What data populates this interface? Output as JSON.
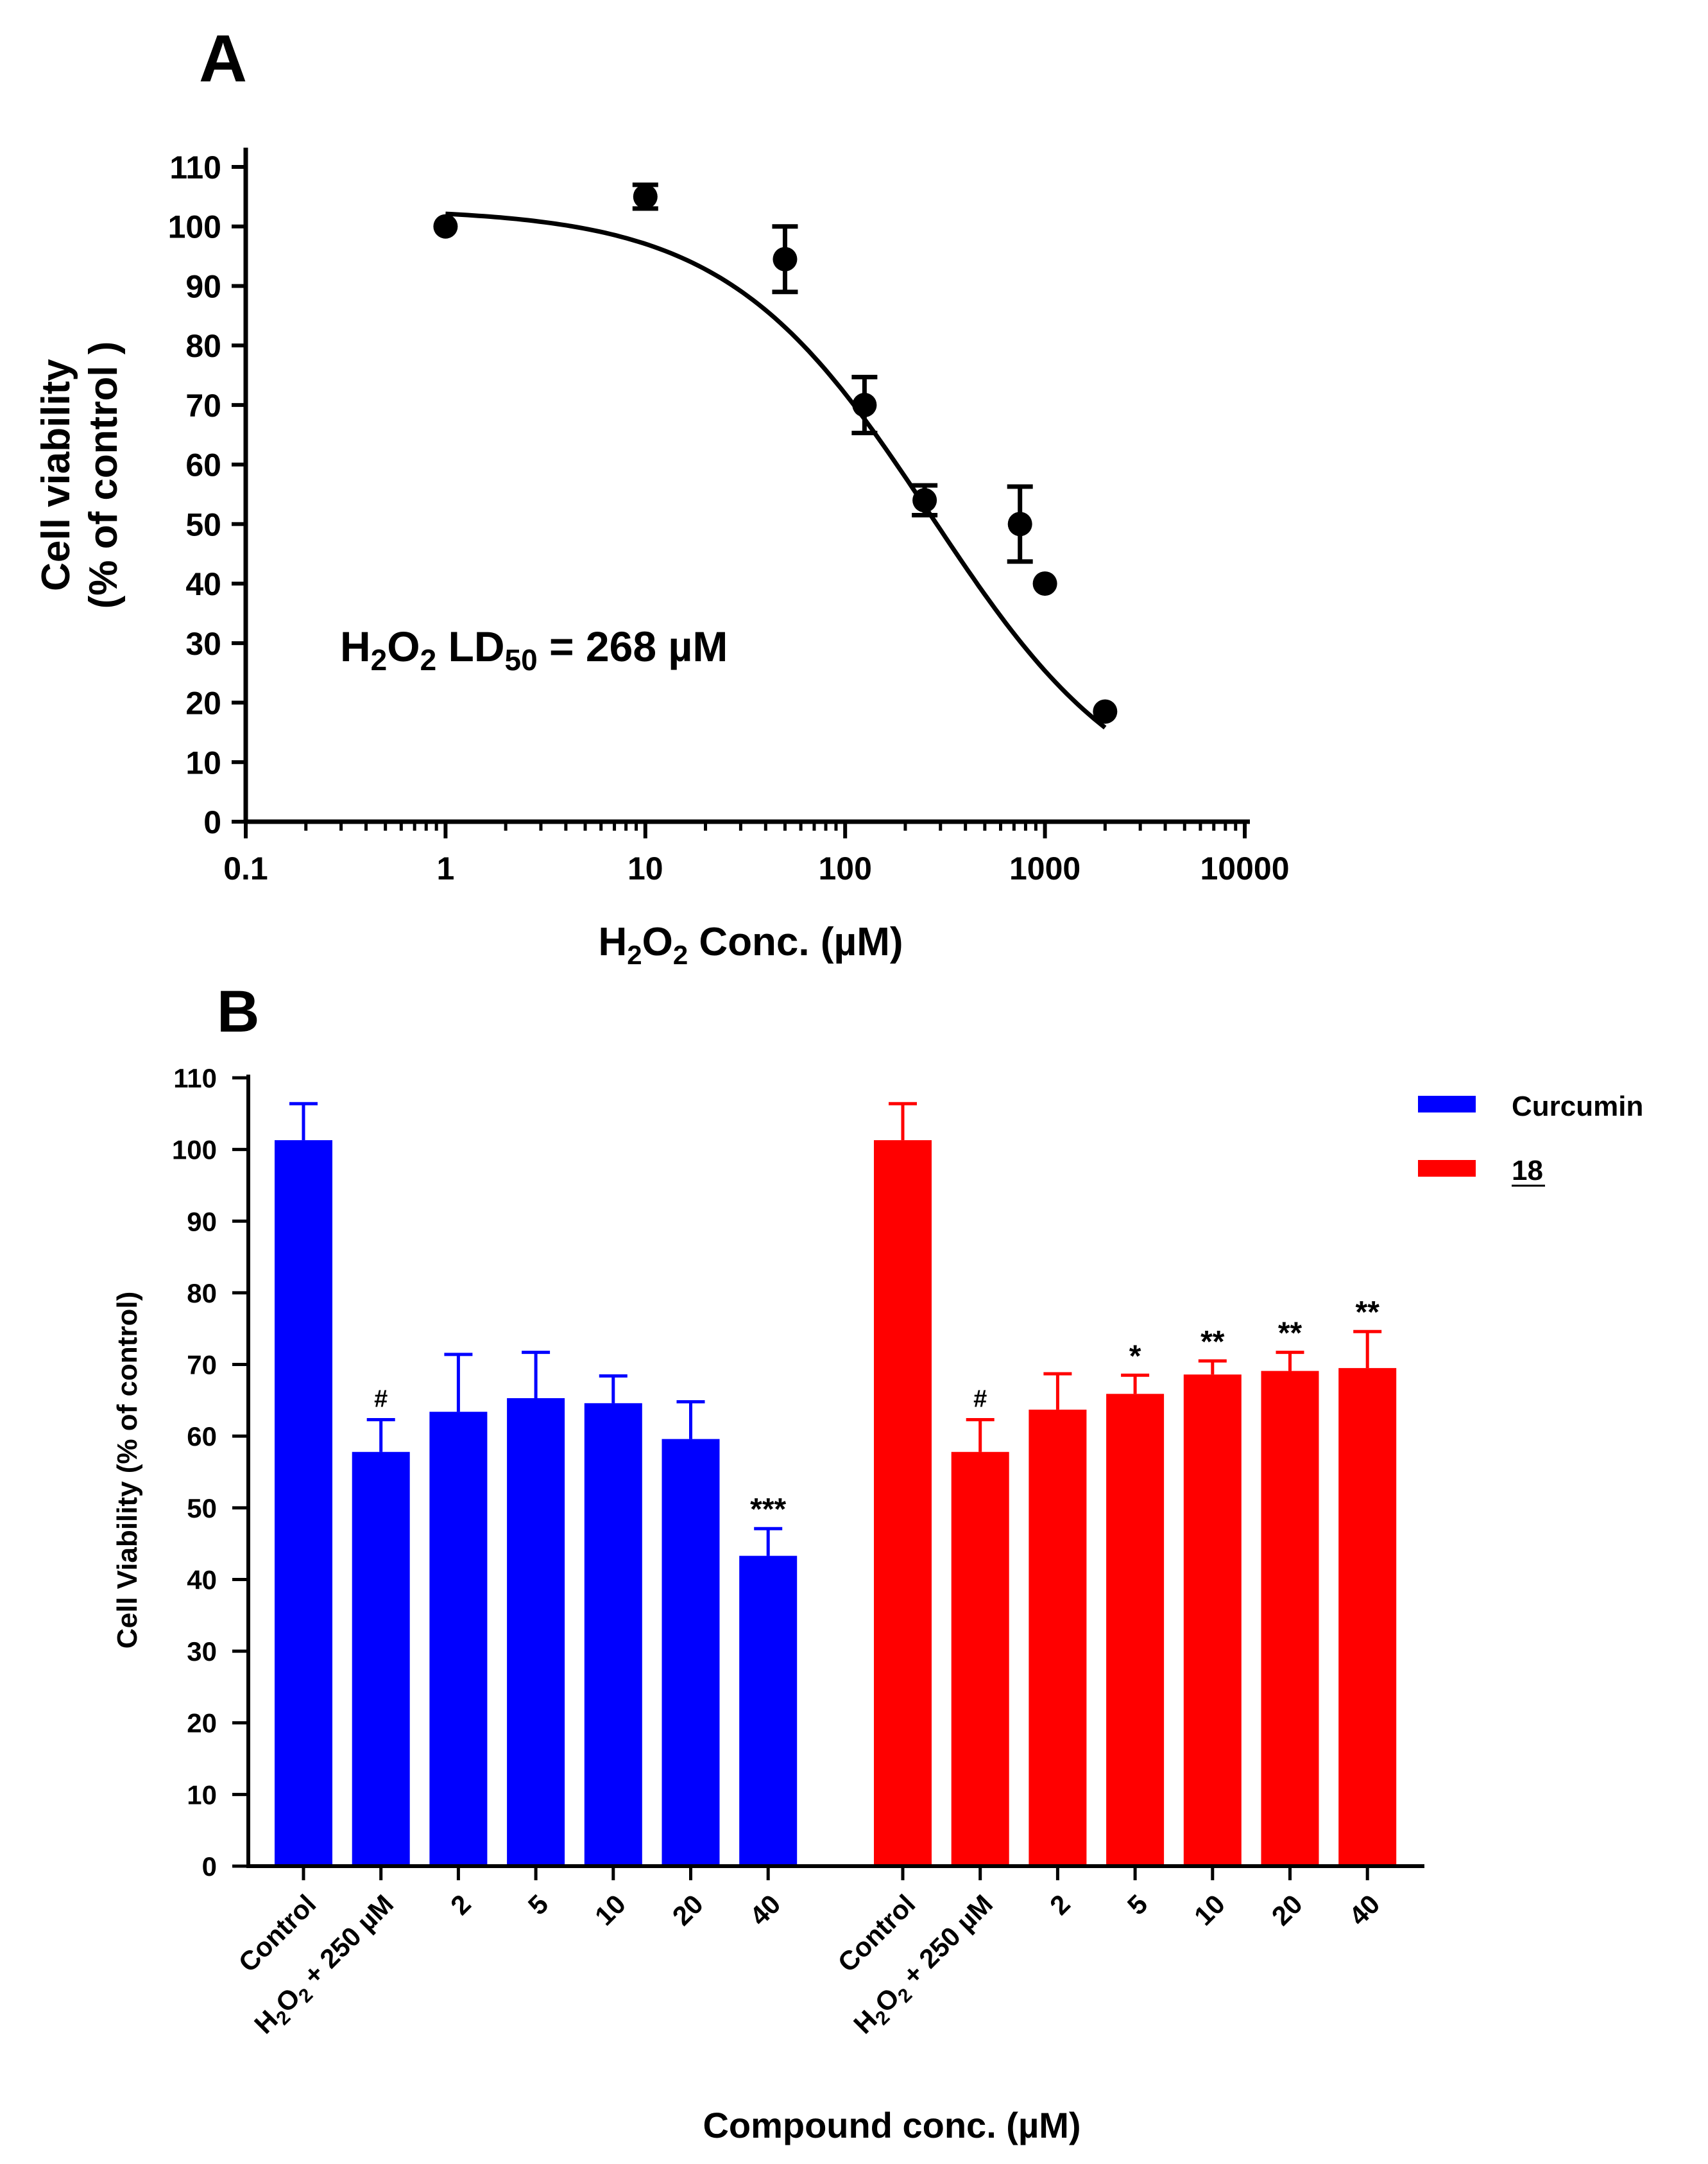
{
  "colors": {
    "curcumin": "#0000ff",
    "compound18": "#ff0000",
    "ink": "#000000"
  },
  "chart_data": [
    {
      "panel_label": "A",
      "type": "scatter",
      "xscale": "log",
      "xlim": [
        0.1,
        10000
      ],
      "ylim": [
        0,
        110
      ],
      "ylabel_line1": "Cell viability",
      "ylabel_line2": "(% of control )",
      "xlabel": {
        "main": "H",
        "sub1": "2",
        "mid": "O",
        "sub2": "2",
        "rest": "  Conc. (µM)"
      },
      "xtick_labels": [
        "0.1",
        "1",
        "10",
        "100",
        "1000",
        "10000"
      ],
      "xticks": [
        0.1,
        1,
        10,
        100,
        1000,
        10000
      ],
      "yticks": [
        0,
        10,
        20,
        30,
        40,
        50,
        60,
        70,
        80,
        90,
        100,
        110
      ],
      "points": [
        {
          "x": 1,
          "y": 100,
          "err": 0
        },
        {
          "x": 10,
          "y": 105,
          "err": 2
        },
        {
          "x": 50,
          "y": 94.5,
          "err": 5.5
        },
        {
          "x": 125,
          "y": 70,
          "err": 4.7
        },
        {
          "x": 250,
          "y": 54,
          "err": 2.5
        },
        {
          "x": 750,
          "y": 50,
          "err": 6.3
        },
        {
          "x": 1000,
          "y": 40,
          "err": 0
        },
        {
          "x": 2000,
          "y": 18.5,
          "err": 0
        }
      ],
      "fit": {
        "top": 103,
        "bottom": 0,
        "ld50": 268,
        "hill": 0.85,
        "x_from": 1,
        "x_to": 2000
      },
      "annotation": {
        "p1": "H",
        "s1": "2",
        "p2": "O",
        "s2": "2",
        "p3": " LD",
        "s3": "50",
        "p4": " = 268 µM"
      }
    },
    {
      "panel_label": "B",
      "type": "bar",
      "ylim": [
        0,
        110
      ],
      "ylabel": "Cell Viability (% of control)",
      "xlabel": "Compound conc. (µM)",
      "yticks": [
        0,
        10,
        20,
        30,
        40,
        50,
        60,
        70,
        80,
        90,
        100,
        110
      ],
      "categories": [
        "Control",
        "H2O2 + 250 µM",
        "2",
        "5",
        "10",
        "20",
        "40"
      ],
      "h2o2_label": {
        "p1": "H",
        "s1": "2",
        "p2": "O",
        "s2": "2",
        "p3": " + 250 µM"
      },
      "legend": [
        "Curcumin",
        "18"
      ],
      "series": [
        {
          "name": "Curcumin",
          "values": [
            101.3,
            57.8,
            63.4,
            65.3,
            64.6,
            59.6,
            43.3
          ],
          "errors": [
            5.1,
            4.5,
            8.0,
            6.4,
            3.8,
            5.2,
            3.8
          ],
          "significance": [
            "",
            "#",
            "",
            "",
            "",
            "",
            "***"
          ]
        },
        {
          "name": "18",
          "values": [
            101.3,
            57.8,
            63.7,
            65.9,
            68.6,
            69.1,
            69.5
          ],
          "errors": [
            5.1,
            4.5,
            5.0,
            2.6,
            1.9,
            2.6,
            5.1
          ],
          "significance": [
            "",
            "#",
            "",
            "*",
            "**",
            "**",
            "**"
          ]
        }
      ]
    }
  ]
}
